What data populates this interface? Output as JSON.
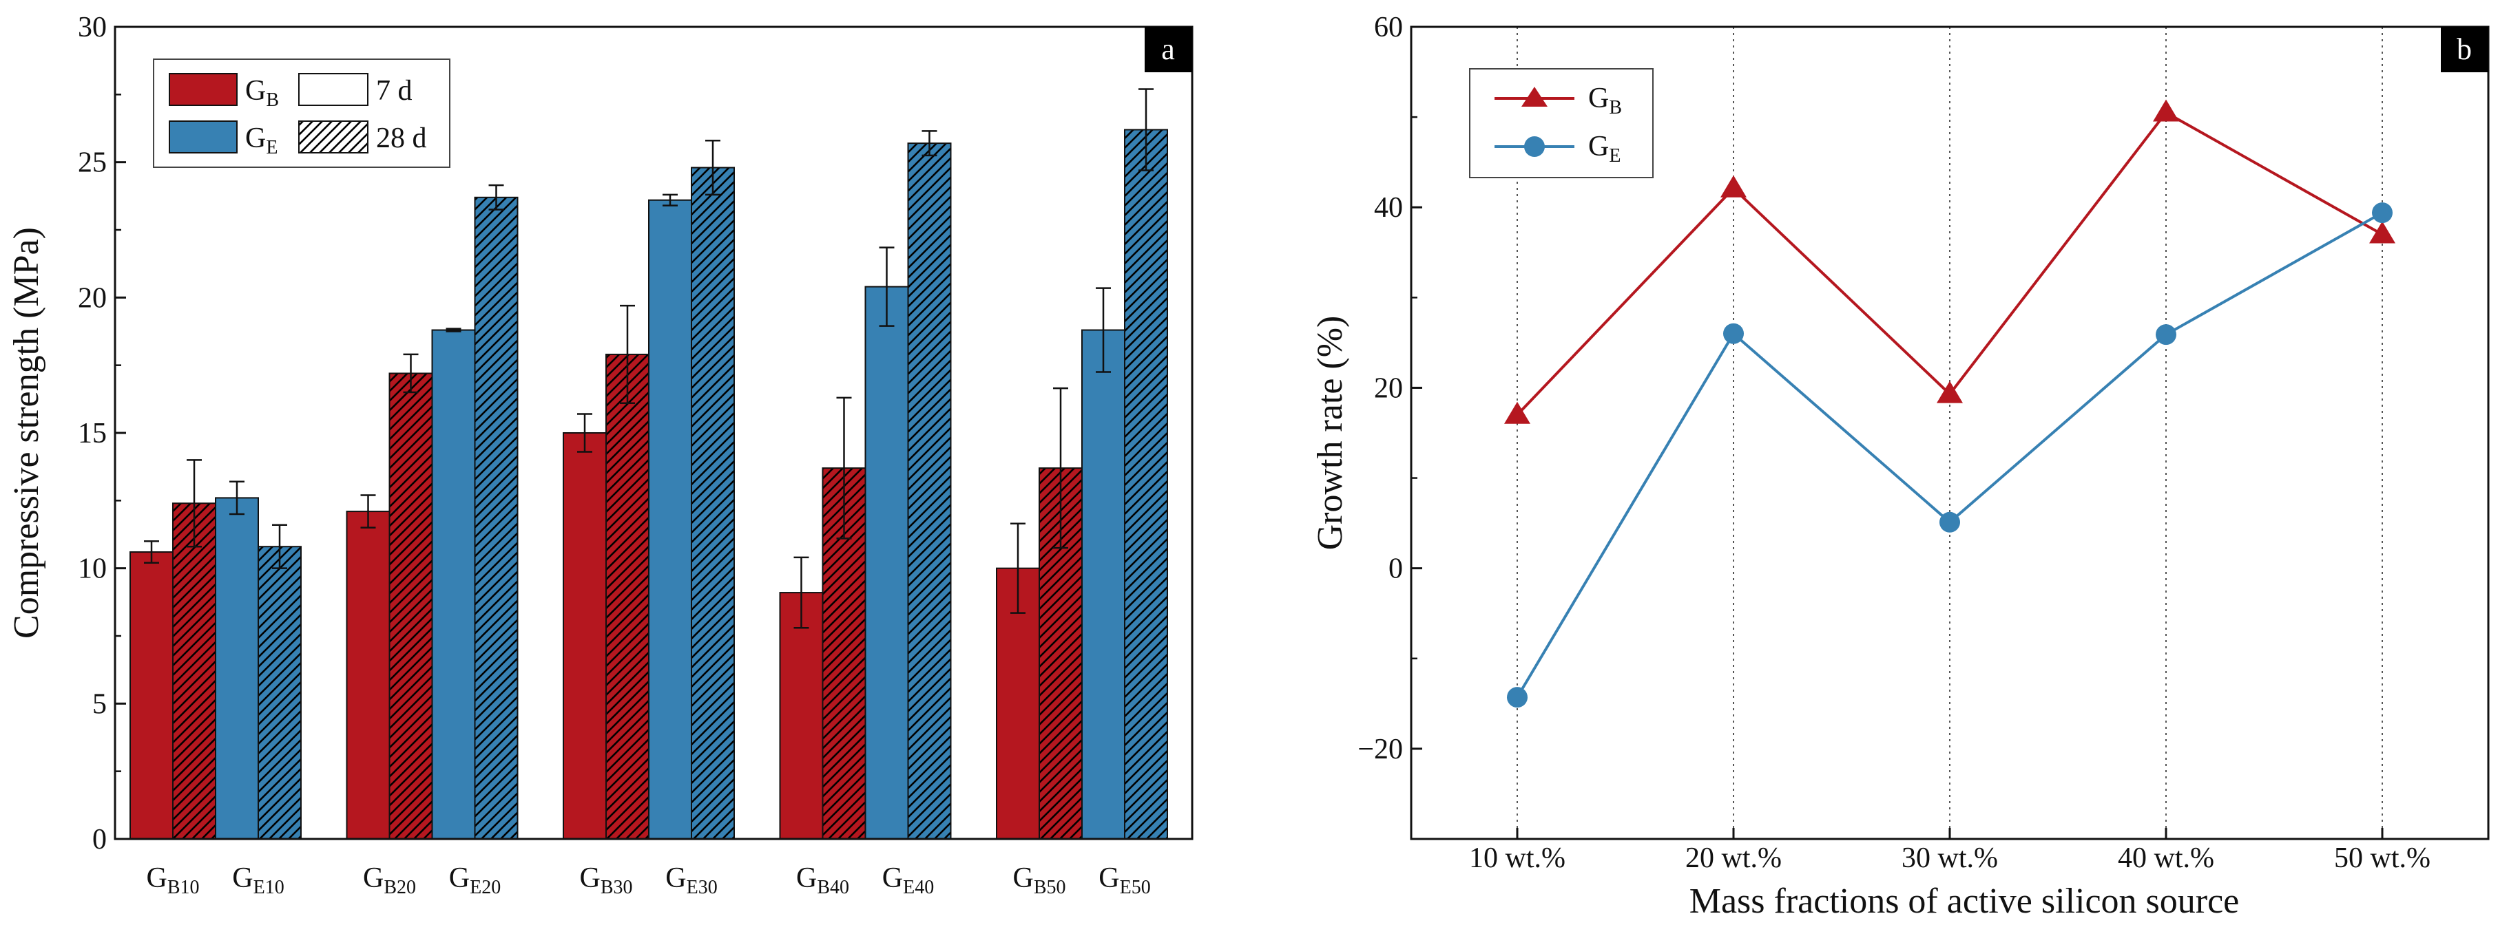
{
  "colors": {
    "GB": "#b5171f",
    "GE": "#3781b3",
    "axis": "#111111",
    "grid": "#555555"
  },
  "panel_a": {
    "label": "a",
    "legend": {
      "gb": "G",
      "gb_sub": "B",
      "ge": "G",
      "ge_sub": "E",
      "d7": "7 d",
      "d28": "28 d"
    }
  },
  "panel_b": {
    "label": "b",
    "legend": {
      "gb": "G",
      "gb_sub": "B",
      "ge": "G",
      "ge_sub": "E"
    }
  },
  "chart_data": [
    {
      "type": "bar",
      "panel": "a",
      "title": "",
      "xlabel": "",
      "ylabel": "Compressive strength (MPa)",
      "ylim": [
        0,
        30
      ],
      "yticks": [
        0,
        5,
        10,
        15,
        20,
        25,
        30
      ],
      "groups": [
        {
          "bars": [
            {
              "series": "GB",
              "age": "7 d",
              "value": 10.6,
              "error": 0.4
            },
            {
              "series": "GB",
              "age": "28 d",
              "value": 12.4,
              "error": 1.6
            },
            {
              "series": "GE",
              "age": "7 d",
              "value": 12.6,
              "error": 0.6
            },
            {
              "series": "GE",
              "age": "28 d",
              "value": 10.8,
              "error": 0.8
            }
          ],
          "labels": [
            {
              "main": "G",
              "sub": "B10"
            },
            {
              "main": "G",
              "sub": "E10"
            }
          ]
        },
        {
          "bars": [
            {
              "series": "GB",
              "age": "7 d",
              "value": 12.1,
              "error": 0.6
            },
            {
              "series": "GB",
              "age": "28 d",
              "value": 17.2,
              "error": 0.7
            },
            {
              "series": "GE",
              "age": "7 d",
              "value": 18.8,
              "error": 0.05
            },
            {
              "series": "GE",
              "age": "28 d",
              "value": 23.7,
              "error": 0.45
            }
          ],
          "labels": [
            {
              "main": "G",
              "sub": "B20"
            },
            {
              "main": "G",
              "sub": "E20"
            }
          ]
        },
        {
          "bars": [
            {
              "series": "GB",
              "age": "7 d",
              "value": 15.0,
              "error": 0.7
            },
            {
              "series": "GB",
              "age": "28 d",
              "value": 17.9,
              "error": 1.8
            },
            {
              "series": "GE",
              "age": "7 d",
              "value": 23.6,
              "error": 0.2
            },
            {
              "series": "GE",
              "age": "28 d",
              "value": 24.8,
              "error": 1.0
            }
          ],
          "labels": [
            {
              "main": "G",
              "sub": "B30"
            },
            {
              "main": "G",
              "sub": "E30"
            }
          ]
        },
        {
          "bars": [
            {
              "series": "GB",
              "age": "7 d",
              "value": 9.1,
              "error": 1.3
            },
            {
              "series": "GB",
              "age": "28 d",
              "value": 13.7,
              "error": 2.6
            },
            {
              "series": "GE",
              "age": "7 d",
              "value": 20.4,
              "error": 1.45
            },
            {
              "series": "GE",
              "age": "28 d",
              "value": 25.7,
              "error": 0.45
            }
          ],
          "labels": [
            {
              "main": "G",
              "sub": "B40"
            },
            {
              "main": "G",
              "sub": "E40"
            }
          ]
        },
        {
          "bars": [
            {
              "series": "GB",
              "age": "7 d",
              "value": 10.0,
              "error": 1.65
            },
            {
              "series": "GB",
              "age": "28 d",
              "value": 13.7,
              "error": 2.95
            },
            {
              "series": "GE",
              "age": "7 d",
              "value": 18.8,
              "error": 1.55
            },
            {
              "series": "GE",
              "age": "28 d",
              "value": 26.2,
              "error": 1.5
            }
          ],
          "labels": [
            {
              "main": "G",
              "sub": "B50"
            },
            {
              "main": "G",
              "sub": "E50"
            }
          ]
        }
      ]
    },
    {
      "type": "line",
      "panel": "b",
      "title": "",
      "xlabel": "Mass fractions of active silicon source",
      "ylabel": "Growth rate (%)",
      "categories": [
        "10 wt.%",
        "20 wt.%",
        "30 wt.%",
        "40 wt.%",
        "50 wt.%"
      ],
      "ylim": [
        -30,
        60
      ],
      "yticks": [
        -20,
        0,
        20,
        40,
        60
      ],
      "series": [
        {
          "name": "GB",
          "marker": "triangle",
          "values": [
            17.0,
            42.1,
            19.3,
            50.5,
            37.0
          ]
        },
        {
          "name": "GE",
          "marker": "circle",
          "values": [
            -14.3,
            26.0,
            5.1,
            25.9,
            39.4
          ]
        }
      ]
    }
  ]
}
